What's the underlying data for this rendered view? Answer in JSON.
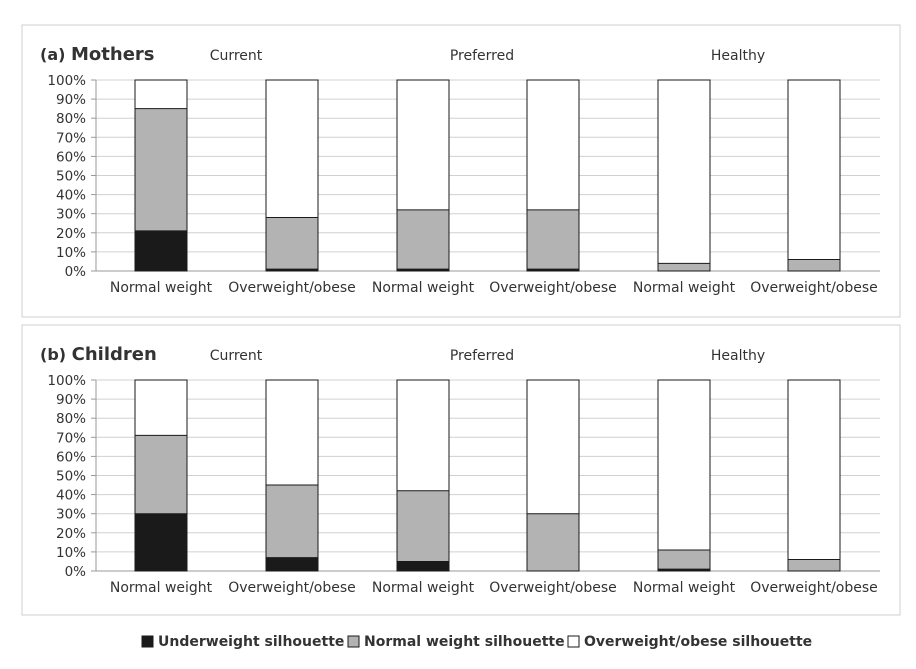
{
  "colors": {
    "underweight": "#1a1a1a",
    "normal": "#b3b3b3",
    "overweight": "#ffffff",
    "frame": "#cfcfcf",
    "grid": "#d0d0d0",
    "bar_stroke": "#1a1a1a",
    "text": "#333333"
  },
  "legend": {
    "underweight": "Underweight silhouette",
    "normal": "Normal weight silhouette",
    "overweight": "Overweight/obese silhouette"
  },
  "chart_data": [
    {
      "type": "bar",
      "stacked": true,
      "title": "(a) Mothers",
      "group_labels": [
        "Current",
        "Preferred",
        "Healthy"
      ],
      "categories": [
        "Normal weight",
        "Overweight/obese",
        "Normal weight",
        "Overweight/obese",
        "Normal weight",
        "Overweight/obese"
      ],
      "ylim": [
        0,
        100
      ],
      "yticks": [
        "0%",
        "10%",
        "20%",
        "30%",
        "40%",
        "50%",
        "60%",
        "70%",
        "80%",
        "90%",
        "100%"
      ],
      "grid": true,
      "legend_position": "bottom",
      "series": [
        {
          "name": "Underweight silhouette",
          "values": [
            21,
            1,
            1,
            1,
            0,
            0
          ]
        },
        {
          "name": "Normal weight silhouette",
          "values": [
            64,
            27,
            31,
            31,
            4,
            6
          ]
        },
        {
          "name": "Overweight/obese silhouette",
          "values": [
            15,
            72,
            68,
            68,
            96,
            94
          ]
        }
      ]
    },
    {
      "type": "bar",
      "stacked": true,
      "title": "(b) Children",
      "group_labels": [
        "Current",
        "Preferred",
        "Healthy"
      ],
      "categories": [
        "Normal weight",
        "Overweight/obese",
        "Normal weight",
        "Overweight/obese",
        "Normal weight",
        "Overweight/obese"
      ],
      "ylim": [
        0,
        100
      ],
      "yticks": [
        "0%",
        "10%",
        "20%",
        "30%",
        "40%",
        "50%",
        "60%",
        "70%",
        "80%",
        "90%",
        "100%"
      ],
      "grid": true,
      "legend_position": "bottom",
      "series": [
        {
          "name": "Underweight silhouette",
          "values": [
            30,
            7,
            5,
            0,
            1,
            0
          ]
        },
        {
          "name": "Normal weight silhouette",
          "values": [
            41,
            38,
            37,
            30,
            10,
            6
          ]
        },
        {
          "name": "Overweight/obese silhouette",
          "values": [
            29,
            55,
            58,
            70,
            89,
            94
          ]
        }
      ]
    }
  ]
}
